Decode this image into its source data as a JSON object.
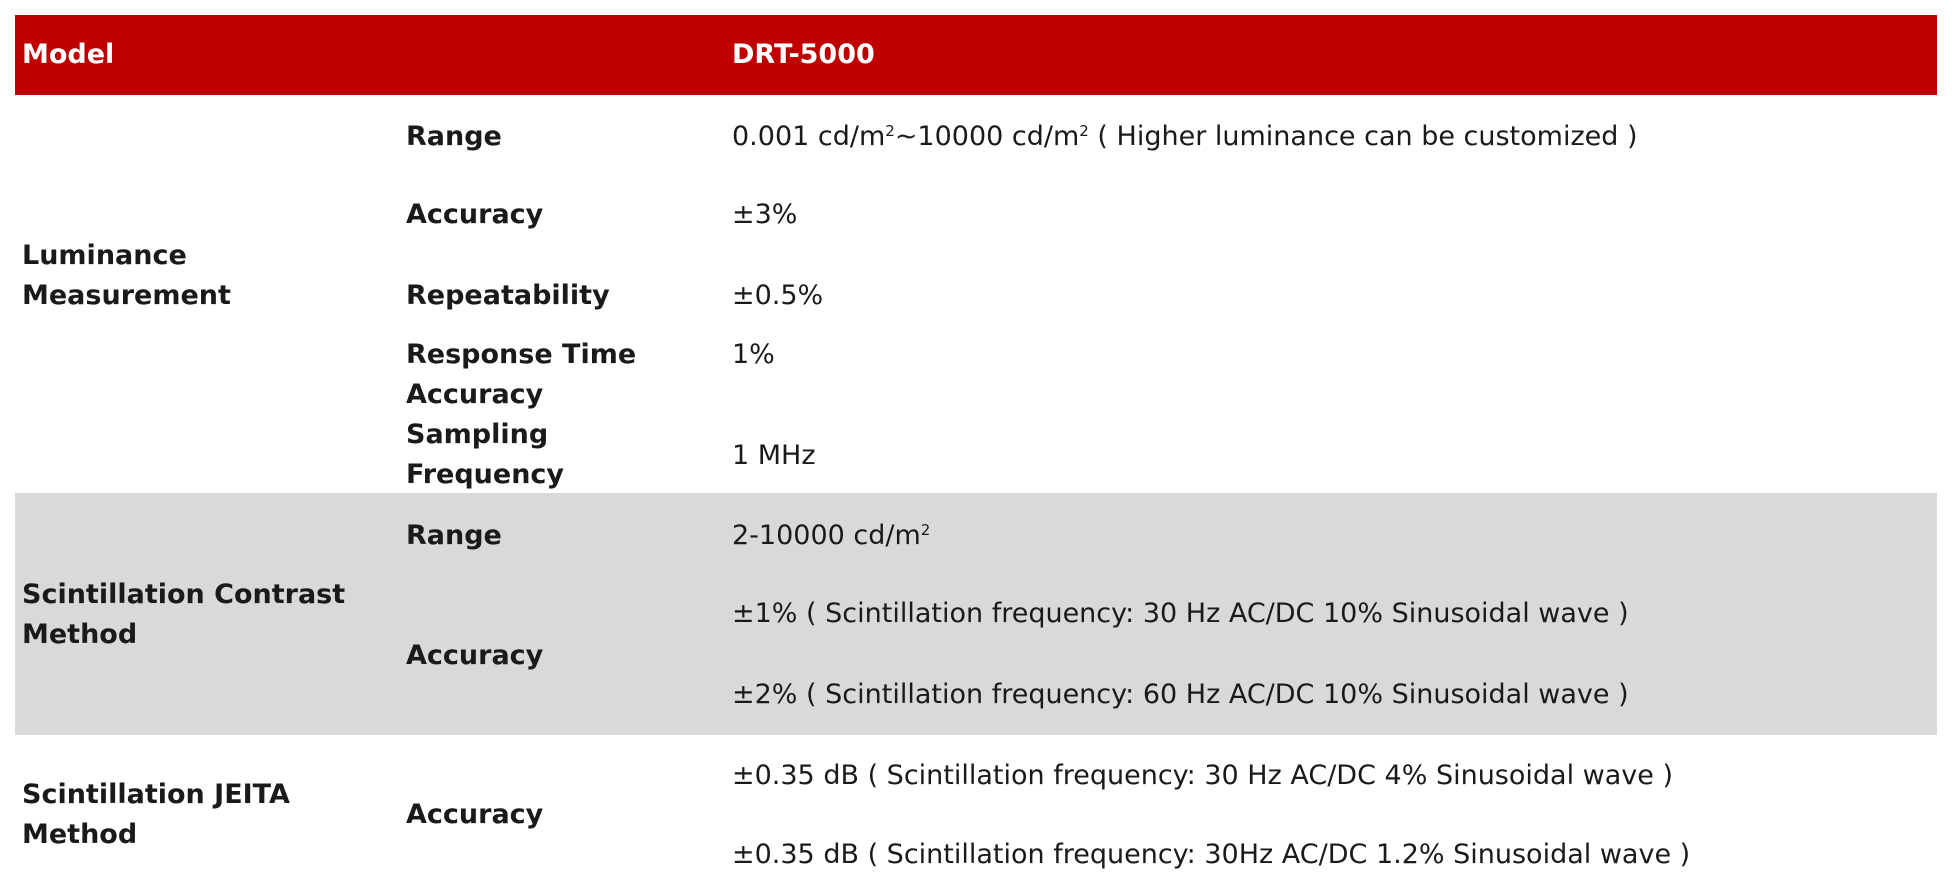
{
  "header": {
    "col1": "Model",
    "col3": "DRT-5000",
    "background": "#c00000"
  },
  "luminance": {
    "group": [
      "Luminance",
      "Measurement"
    ],
    "range_label": "Range",
    "range_value": {
      "a": "0.001 cd/m",
      "sup1": "2",
      "b": "~10000 cd/m",
      "sup2": "2",
      "c": " ( Higher luminance can be customized )"
    },
    "accuracy_label": "Accuracy",
    "accuracy_value": "±3%",
    "repeatability_label": "Repeatability",
    "repeatability_value": "±0.5%",
    "response_label": [
      "Response Time",
      "Accuracy"
    ],
    "response_value": "1%",
    "sampling_label": [
      "Sampling",
      "Frequency"
    ],
    "sampling_value": "1 MHz"
  },
  "contrast": {
    "group": [
      "Scintillation Contrast",
      "Method"
    ],
    "range_label": "Range",
    "range_value": {
      "a": "2-10000 cd/m",
      "sup": "2"
    },
    "accuracy_label": "Accuracy",
    "accuracy_values": [
      "±1% ( Scintillation frequency: 30 Hz AC/DC 10% Sinusoidal wave )",
      "±2% ( Scintillation frequency: 60 Hz AC/DC 10% Sinusoidal wave )"
    ],
    "background": "#d9d9d9"
  },
  "jeita": {
    "group": [
      "Scintillation JEITA",
      "Method"
    ],
    "accuracy_label": "Accuracy",
    "accuracy_values": [
      "±0.35 dB ( Scintillation frequency: 30 Hz AC/DC 4% Sinusoidal wave )",
      "±0.35 dB ( Scintillation frequency: 30Hz AC/DC 1.2% Sinusoidal wave )"
    ]
  }
}
